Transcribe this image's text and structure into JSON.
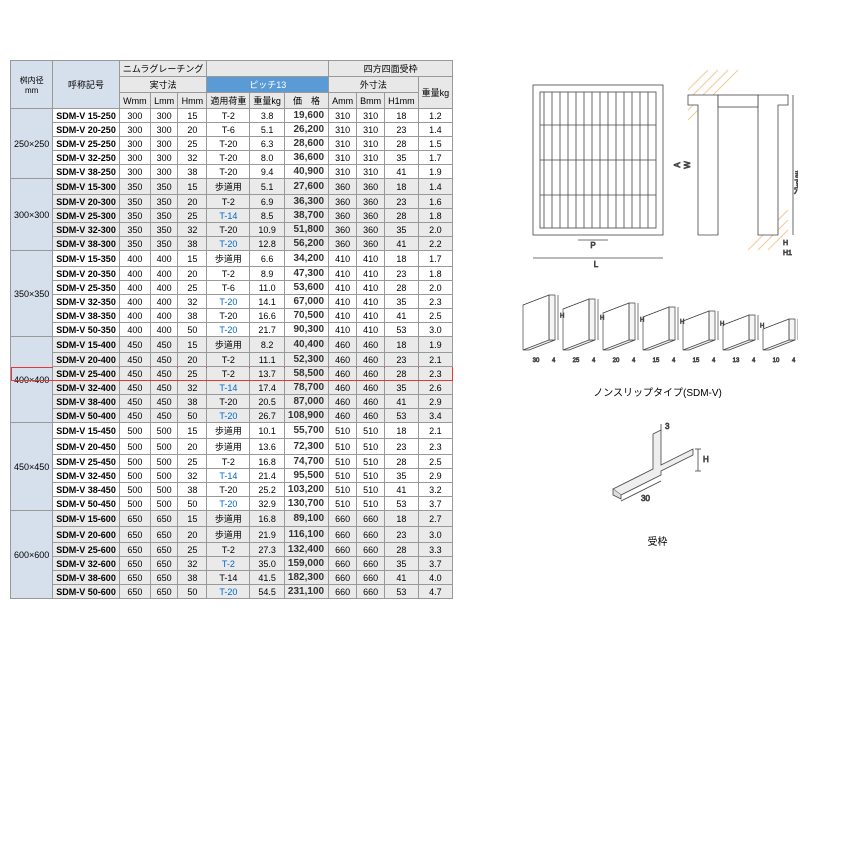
{
  "headers": {
    "inner_dim": "桝内径",
    "inner_dim_unit": "mm",
    "model": "呼称記号",
    "nimura": "ニムラグレーチング",
    "actual_dim": "実寸法",
    "pitch": "ピッチ13",
    "outer_dim": "外寸法",
    "frame": "四方四面受枠",
    "Wmm": "Wmm",
    "Lmm": "Lmm",
    "Hmm": "Hmm",
    "load": "適用荷重",
    "weight": "重量kg",
    "price_label": "価　格",
    "Amm": "Amm",
    "Bmm": "Bmm",
    "H1mm": "H1mm",
    "weight2": "重量kg"
  },
  "groups": [
    {
      "label": "250×250",
      "shade": "even",
      "rows": [
        {
          "m": "SDM-V 15-250",
          "w": "300",
          "l": "300",
          "h": "15",
          "load": "T-2",
          "wt": "3.8",
          "price": "19,600",
          "a": "310",
          "b": "310",
          "h1": "18",
          "wt2": "1.2"
        },
        {
          "m": "SDM-V 20-250",
          "w": "300",
          "l": "300",
          "h": "20",
          "load": "T-6",
          "wt": "5.1",
          "price": "26,200",
          "a": "310",
          "b": "310",
          "h1": "23",
          "wt2": "1.4"
        },
        {
          "m": "SDM-V 25-250",
          "w": "300",
          "l": "300",
          "h": "25",
          "load": "T-20",
          "wt": "6.3",
          "price": "28,600",
          "a": "310",
          "b": "310",
          "h1": "28",
          "wt2": "1.5"
        },
        {
          "m": "SDM-V 32-250",
          "w": "300",
          "l": "300",
          "h": "32",
          "load": "T-20",
          "wt": "8.0",
          "price": "36,600",
          "a": "310",
          "b": "310",
          "h1": "35",
          "wt2": "1.7"
        },
        {
          "m": "SDM-V 38-250",
          "w": "300",
          "l": "300",
          "h": "38",
          "load": "T-20",
          "wt": "9.4",
          "price": "40,900",
          "a": "310",
          "b": "310",
          "h1": "41",
          "wt2": "1.9"
        }
      ]
    },
    {
      "label": "300×300",
      "shade": "odd",
      "rows": [
        {
          "m": "SDM-V 15-300",
          "w": "350",
          "l": "350",
          "h": "15",
          "load": "歩道用",
          "wt": "5.1",
          "price": "27,600",
          "a": "360",
          "b": "360",
          "h1": "18",
          "wt2": "1.4"
        },
        {
          "m": "SDM-V 20-300",
          "w": "350",
          "l": "350",
          "h": "20",
          "load": "T-2",
          "wt": "6.9",
          "price": "36,300",
          "a": "360",
          "b": "360",
          "h1": "23",
          "wt2": "1.6"
        },
        {
          "m": "SDM-V 25-300",
          "w": "350",
          "l": "350",
          "h": "25",
          "load": "T-14",
          "wt": "8.5",
          "price": "38,700",
          "a": "360",
          "b": "360",
          "h1": "28",
          "wt2": "1.8",
          "link": true
        },
        {
          "m": "SDM-V 32-300",
          "w": "350",
          "l": "350",
          "h": "32",
          "load": "T-20",
          "wt": "10.9",
          "price": "51,800",
          "a": "360",
          "b": "360",
          "h1": "35",
          "wt2": "2.0"
        },
        {
          "m": "SDM-V 38-300",
          "w": "350",
          "l": "350",
          "h": "38",
          "load": "T-20",
          "wt": "12.8",
          "price": "56,200",
          "a": "360",
          "b": "360",
          "h1": "41",
          "wt2": "2.2",
          "link": true
        }
      ]
    },
    {
      "label": "350×350",
      "shade": "even",
      "rows": [
        {
          "m": "SDM-V 15-350",
          "w": "400",
          "l": "400",
          "h": "15",
          "load": "歩道用",
          "wt": "6.6",
          "price": "34,200",
          "a": "410",
          "b": "410",
          "h1": "18",
          "wt2": "1.7"
        },
        {
          "m": "SDM-V 20-350",
          "w": "400",
          "l": "400",
          "h": "20",
          "load": "T-2",
          "wt": "8.9",
          "price": "47,300",
          "a": "410",
          "b": "410",
          "h1": "23",
          "wt2": "1.8"
        },
        {
          "m": "SDM-V 25-350",
          "w": "400",
          "l": "400",
          "h": "25",
          "load": "T-6",
          "wt": "11.0",
          "price": "53,600",
          "a": "410",
          "b": "410",
          "h1": "28",
          "wt2": "2.0"
        },
        {
          "m": "SDM-V 32-350",
          "w": "400",
          "l": "400",
          "h": "32",
          "load": "T-20",
          "wt": "14.1",
          "price": "67,000",
          "a": "410",
          "b": "410",
          "h1": "35",
          "wt2": "2.3",
          "link": true
        },
        {
          "m": "SDM-V 38-350",
          "w": "400",
          "l": "400",
          "h": "38",
          "load": "T-20",
          "wt": "16.6",
          "price": "70,500",
          "a": "410",
          "b": "410",
          "h1": "41",
          "wt2": "2.5"
        },
        {
          "m": "SDM-V 50-350",
          "w": "400",
          "l": "400",
          "h": "50",
          "load": "T-20",
          "wt": "21.7",
          "price": "90,300",
          "a": "410",
          "b": "410",
          "h1": "53",
          "wt2": "3.0",
          "link": true
        }
      ]
    },
    {
      "label": "400×400",
      "shade": "odd",
      "rows": [
        {
          "m": "SDM-V 15-400",
          "w": "450",
          "l": "450",
          "h": "15",
          "load": "歩道用",
          "wt": "8.2",
          "price": "40,400",
          "a": "460",
          "b": "460",
          "h1": "18",
          "wt2": "1.9"
        },
        {
          "m": "SDM-V 20-400",
          "w": "450",
          "l": "450",
          "h": "20",
          "load": "T-2",
          "wt": "11.1",
          "price": "52,300",
          "a": "460",
          "b": "460",
          "h1": "23",
          "wt2": "2.1"
        },
        {
          "m": "SDM-V 25-400",
          "w": "450",
          "l": "450",
          "h": "25",
          "load": "T-2",
          "wt": "13.7",
          "price": "58,500",
          "a": "460",
          "b": "460",
          "h1": "28",
          "wt2": "2.3",
          "hl": true
        },
        {
          "m": "SDM-V 32-400",
          "w": "450",
          "l": "450",
          "h": "32",
          "load": "T-14",
          "wt": "17.4",
          "price": "78,700",
          "a": "460",
          "b": "460",
          "h1": "35",
          "wt2": "2.6",
          "link": true
        },
        {
          "m": "SDM-V 38-400",
          "w": "450",
          "l": "450",
          "h": "38",
          "load": "T-20",
          "wt": "20.5",
          "price": "87,000",
          "a": "460",
          "b": "460",
          "h1": "41",
          "wt2": "2.9"
        },
        {
          "m": "SDM-V 50-400",
          "w": "450",
          "l": "450",
          "h": "50",
          "load": "T-20",
          "wt": "26.7",
          "price": "108,900",
          "a": "460",
          "b": "460",
          "h1": "53",
          "wt2": "3.4",
          "link": true
        }
      ]
    },
    {
      "label": "450×450",
      "shade": "even",
      "rows": [
        {
          "m": "SDM-V 15-450",
          "w": "500",
          "l": "500",
          "h": "15",
          "load": "歩道用",
          "wt": "10.1",
          "price": "55,700",
          "a": "510",
          "b": "510",
          "h1": "18",
          "wt2": "2.1"
        },
        {
          "m": "SDM-V 20-450",
          "w": "500",
          "l": "500",
          "h": "20",
          "load": "歩道用",
          "wt": "13.6",
          "price": "72,300",
          "a": "510",
          "b": "510",
          "h1": "23",
          "wt2": "2.3"
        },
        {
          "m": "SDM-V 25-450",
          "w": "500",
          "l": "500",
          "h": "25",
          "load": "T-2",
          "wt": "16.8",
          "price": "74,700",
          "a": "510",
          "b": "510",
          "h1": "28",
          "wt2": "2.5"
        },
        {
          "m": "SDM-V 32-450",
          "w": "500",
          "l": "500",
          "h": "32",
          "load": "T-14",
          "wt": "21.4",
          "price": "95,500",
          "a": "510",
          "b": "510",
          "h1": "35",
          "wt2": "2.9",
          "link": true
        },
        {
          "m": "SDM-V 38-450",
          "w": "500",
          "l": "500",
          "h": "38",
          "load": "T-20",
          "wt": "25.2",
          "price": "103,200",
          "a": "510",
          "b": "510",
          "h1": "41",
          "wt2": "3.2"
        },
        {
          "m": "SDM-V 50-450",
          "w": "500",
          "l": "500",
          "h": "50",
          "load": "T-20",
          "wt": "32.9",
          "price": "130,700",
          "a": "510",
          "b": "510",
          "h1": "53",
          "wt2": "3.7",
          "link": true
        }
      ]
    },
    {
      "label": "600×600",
      "shade": "odd",
      "rows": [
        {
          "m": "SDM-V 15-600",
          "w": "650",
          "l": "650",
          "h": "15",
          "load": "歩道用",
          "wt": "16.8",
          "price": "89,100",
          "a": "660",
          "b": "660",
          "h1": "18",
          "wt2": "2.7"
        },
        {
          "m": "SDM-V 20-600",
          "w": "650",
          "l": "650",
          "h": "20",
          "load": "歩道用",
          "wt": "21.9",
          "price": "116,100",
          "a": "660",
          "b": "660",
          "h1": "23",
          "wt2": "3.0"
        },
        {
          "m": "SDM-V 25-600",
          "w": "650",
          "l": "650",
          "h": "25",
          "load": "T-2",
          "wt": "27.3",
          "price": "132,400",
          "a": "660",
          "b": "660",
          "h1": "28",
          "wt2": "3.3"
        },
        {
          "m": "SDM-V 32-600",
          "w": "650",
          "l": "650",
          "h": "32",
          "load": "T-2",
          "wt": "35.0",
          "price": "159,000",
          "a": "660",
          "b": "660",
          "h1": "35",
          "wt2": "3.7",
          "link": true
        },
        {
          "m": "SDM-V 38-600",
          "w": "650",
          "l": "650",
          "h": "38",
          "load": "T-14",
          "wt": "41.5",
          "price": "182,300",
          "a": "660",
          "b": "660",
          "h1": "41",
          "wt2": "4.0"
        },
        {
          "m": "SDM-V 50-600",
          "w": "650",
          "l": "650",
          "h": "50",
          "load": "T-20",
          "wt": "54.5",
          "price": "231,100",
          "a": "660",
          "b": "660",
          "h1": "53",
          "wt2": "4.7",
          "link": true
        }
      ]
    }
  ],
  "diagrams": {
    "top_caption": "",
    "middle_caption": "ノンスリップタイプ(SDM-V)",
    "bottom_caption": "受枠",
    "labels": {
      "W": "W",
      "A": "A",
      "L": "L",
      "B": "B",
      "P": "P",
      "H": "H",
      "H1": "H1",
      "masu": "ます穴"
    },
    "bars": [
      {
        "w": "30",
        "h": "",
        "s": "4"
      },
      {
        "w": "25",
        "h": "",
        "s": "4"
      },
      {
        "w": "20",
        "h": "",
        "s": "4"
      },
      {
        "w": "15",
        "h": "",
        "s": "4"
      },
      {
        "w": "15",
        "h": "",
        "s": "4"
      },
      {
        "w": "13",
        "h": "",
        "s": "4"
      },
      {
        "w": "10",
        "h": "",
        "s": "4"
      }
    ],
    "detail": {
      "w": "30",
      "t": "3",
      "h": "H"
    }
  },
  "colors": {
    "header_blue_bg": "#5b9bd5",
    "header_pale_bg": "#d6e0ec",
    "row_shade": "#eaeaea",
    "border": "#999999",
    "highlight": "#e53935",
    "link": "#0066cc",
    "price_text": "#333333",
    "line": "#444444",
    "hatch": "#f4c99a"
  }
}
